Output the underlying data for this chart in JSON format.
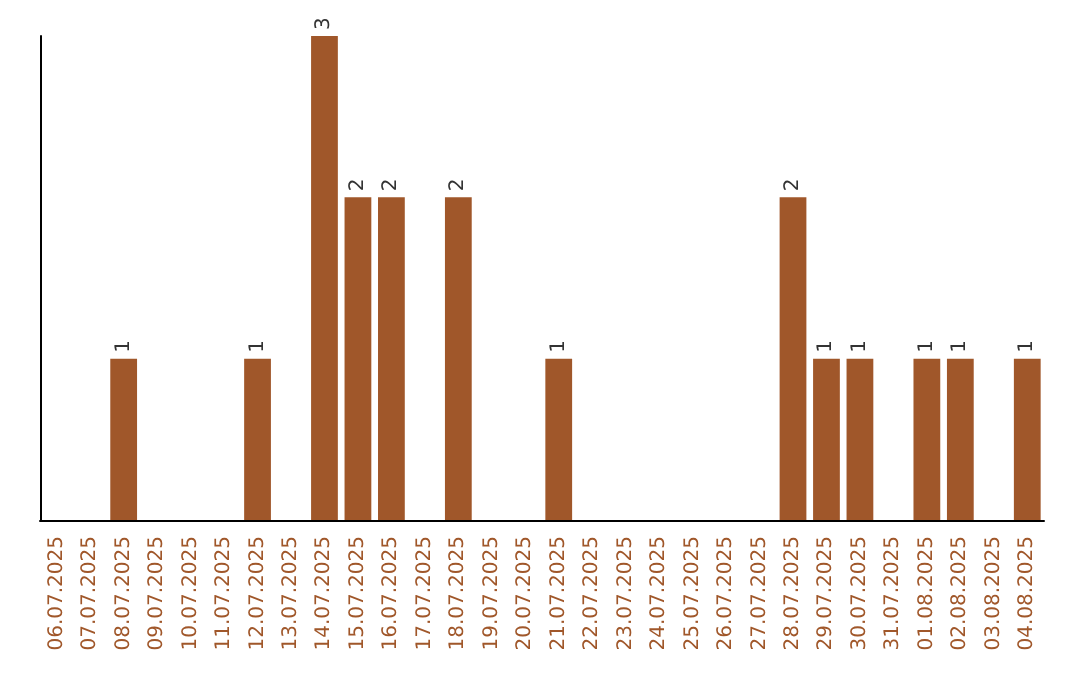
{
  "chart_data": {
    "type": "bar",
    "categories": [
      "06.07.2025",
      "07.07.2025",
      "08.07.2025",
      "09.07.2025",
      "10.07.2025",
      "11.07.2025",
      "12.07.2025",
      "13.07.2025",
      "14.07.2025",
      "15.07.2025",
      "16.07.2025",
      "17.07.2025",
      "18.07.2025",
      "19.07.2025",
      "20.07.2025",
      "21.07.2025",
      "22.07.2025",
      "23.07.2025",
      "24.07.2025",
      "25.07.2025",
      "26.07.2025",
      "27.07.2025",
      "28.07.2025",
      "29.07.2025",
      "30.07.2025",
      "31.07.2025",
      "01.08.2025",
      "02.08.2025",
      "03.08.2025",
      "04.08.2025"
    ],
    "values": [
      0,
      0,
      1,
      0,
      0,
      0,
      1,
      0,
      3,
      2,
      2,
      0,
      2,
      0,
      0,
      1,
      0,
      0,
      0,
      0,
      0,
      0,
      2,
      1,
      1,
      0,
      1,
      1,
      0,
      1
    ],
    "value_labels": [
      null,
      null,
      "1",
      null,
      null,
      null,
      "1",
      null,
      "3",
      "2",
      "2",
      null,
      "2",
      null,
      null,
      "1",
      null,
      null,
      null,
      null,
      null,
      null,
      "2",
      "1",
      "1",
      null,
      "1",
      "1",
      null,
      "1"
    ],
    "color": "#a0572a",
    "tick_labels": "x",
    "grid": false
  }
}
